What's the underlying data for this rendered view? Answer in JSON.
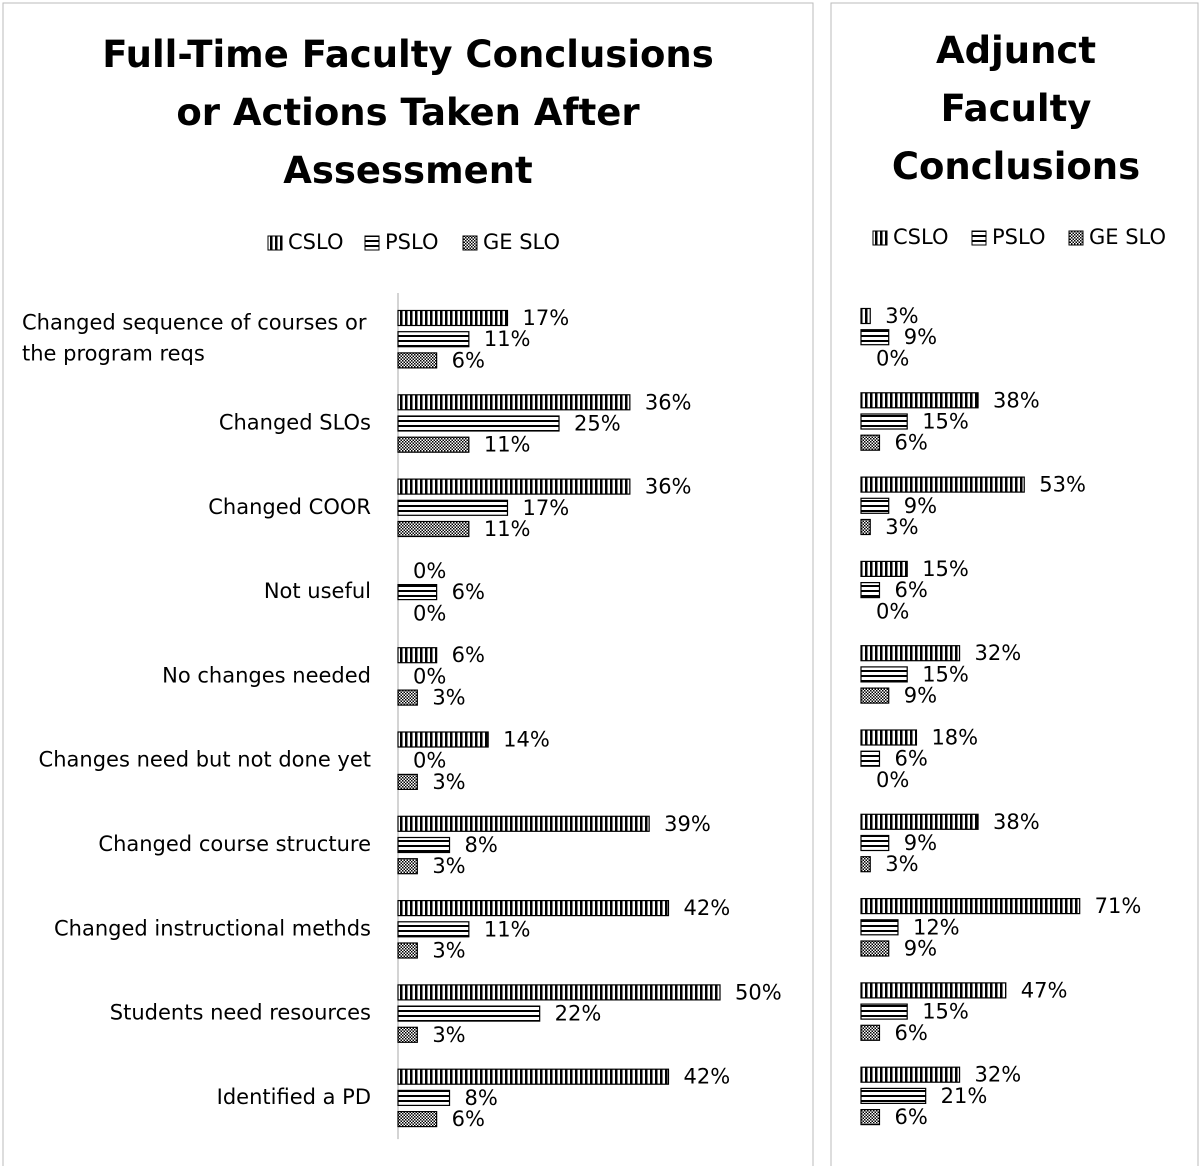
{
  "chart_data": [
    {
      "type": "bar",
      "orientation": "horizontal",
      "title": "Full-Time Faculty Conclusions or Actions Taken After Assessment",
      "categories": [
        "Changed sequence of courses or the program reqs",
        "Changed SLOs",
        "Changed COOR",
        "Not useful",
        "No changes needed",
        "Changes need but not done yet",
        "Changed course structure",
        "Changed instructional methds",
        "Students need resources",
        "Identified a PD"
      ],
      "series": [
        {
          "name": "CSLO",
          "color": "#000000",
          "pattern": "vertical",
          "values": [
            17,
            36,
            36,
            0,
            6,
            14,
            39,
            42,
            50,
            42
          ],
          "value_labels": [
            "17%",
            "36%",
            "36%",
            "0%",
            "6%",
            "14%",
            "39%",
            "42%",
            "50%",
            "42%"
          ]
        },
        {
          "name": "PSLO",
          "color": "#000000",
          "pattern": "horizontal",
          "values": [
            11,
            25,
            17,
            6,
            0,
            0,
            8,
            11,
            22,
            8
          ],
          "value_labels": [
            "11%",
            "25%",
            "17%",
            "6%",
            "0%",
            "0%",
            "8%",
            "11%",
            "22%",
            "8%"
          ]
        },
        {
          "name": "GE SLO",
          "color": "#000000",
          "pattern": "checker",
          "values": [
            6,
            11,
            11,
            0,
            3,
            3,
            3,
            3,
            3,
            6
          ],
          "value_labels": [
            "6%",
            "11%",
            "11%",
            "0%",
            "3%",
            "3%",
            "3%",
            "3%",
            "3%",
            "6%"
          ]
        }
      ],
      "legend": "top"
    },
    {
      "type": "bar",
      "orientation": "horizontal",
      "title": "Adjunct Faculty Conclusions",
      "series": [
        {
          "name": "CSLO",
          "color": "#000000",
          "pattern": "vertical",
          "values": [
            3,
            38,
            53,
            15,
            32,
            18,
            38,
            71,
            47,
            32
          ],
          "value_labels": [
            "3%",
            "38%",
            "53%",
            "15%",
            "32%",
            "18%",
            "38%",
            "71%",
            "47%",
            "32%"
          ]
        },
        {
          "name": "PSLO",
          "color": "#000000",
          "pattern": "horizontal",
          "values": [
            9,
            15,
            9,
            6,
            15,
            6,
            9,
            12,
            15,
            21
          ],
          "value_labels": [
            "9%",
            "15%",
            "9%",
            "6%",
            "15%",
            "6%",
            "9%",
            "12%",
            "15%",
            "21%"
          ]
        },
        {
          "name": "GE SLO",
          "color": "#000000",
          "pattern": "checker",
          "values": [
            0,
            6,
            3,
            0,
            9,
            0,
            3,
            9,
            6,
            6
          ],
          "value_labels": [
            "0%",
            "6%",
            "3%",
            "0%",
            "9%",
            "0%",
            "3%",
            "9%",
            "6%",
            "6%"
          ]
        }
      ],
      "legend": "top"
    }
  ]
}
